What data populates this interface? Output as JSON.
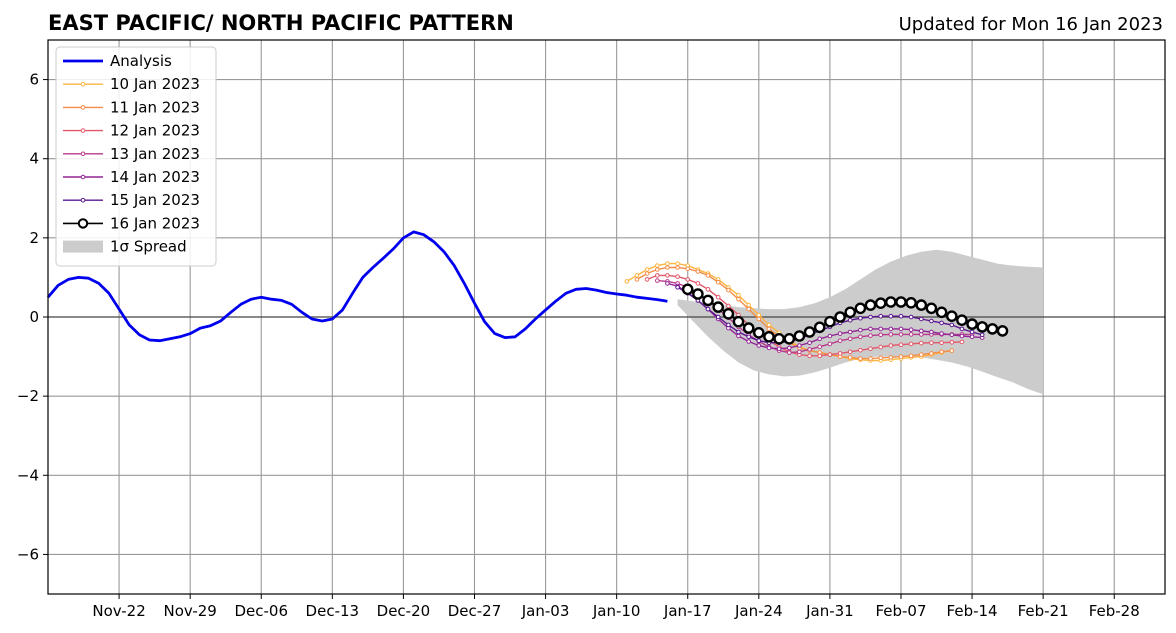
{
  "chart_data": {
    "type": "line",
    "title": "EAST PACIFIC/ NORTH PACIFIC PATTERN",
    "subtitle": "Updated for Mon 16 Jan 2023",
    "xlabel": "",
    "ylabel": "",
    "xlim": [
      "2022-11-15",
      "2023-03-05"
    ],
    "ylim": [
      -7,
      7
    ],
    "yticks": [
      6,
      4,
      2,
      0,
      -2,
      -4,
      -6
    ],
    "ytick_labels": [
      "6",
      "4",
      "2",
      "0",
      "−2",
      "−4",
      "−6"
    ],
    "xticks": [
      "2022-11-22",
      "2022-11-29",
      "2022-12-06",
      "2022-12-13",
      "2022-12-20",
      "2022-12-27",
      "2023-01-03",
      "2023-01-10",
      "2023-01-17",
      "2023-01-24",
      "2023-01-31",
      "2023-02-07",
      "2023-02-14",
      "2023-02-21",
      "2023-02-28"
    ],
    "xtick_labels": [
      "Nov-22",
      "Nov-29",
      "Dec-06",
      "Dec-13",
      "Dec-20",
      "Dec-27",
      "Jan-03",
      "Jan-10",
      "Jan-17",
      "Jan-24",
      "Jan-31",
      "Feb-07",
      "Feb-14",
      "Feb-21",
      "Feb-28"
    ],
    "grid": true,
    "legend_position": "top-left",
    "legend": [
      "Analysis",
      "10 Jan 2023",
      "11 Jan 2023",
      "12 Jan 2023",
      "13 Jan 2023",
      "14 Jan 2023",
      "15 Jan 2023",
      "16 Jan 2023",
      "1σ Spread"
    ],
    "analysis": {
      "name": "Analysis",
      "color": "#0000ee",
      "start": "2022-11-15",
      "values": [
        0.5,
        0.8,
        0.95,
        1.0,
        0.98,
        0.85,
        0.6,
        0.2,
        -0.2,
        -0.45,
        -0.58,
        -0.6,
        -0.55,
        -0.5,
        -0.42,
        -0.28,
        -0.22,
        -0.1,
        0.12,
        0.32,
        0.45,
        0.5,
        0.45,
        0.42,
        0.32,
        0.12,
        -0.05,
        -0.1,
        -0.05,
        0.18,
        0.6,
        1.0,
        1.25,
        1.48,
        1.72,
        2.0,
        2.15,
        2.08,
        1.9,
        1.65,
        1.3,
        0.85,
        0.35,
        -0.12,
        -0.42,
        -0.52,
        -0.5,
        -0.3,
        -0.05,
        0.18,
        0.4,
        0.6,
        0.7,
        0.72,
        0.68,
        0.62,
        0.58,
        0.55,
        0.5,
        0.47,
        0.44,
        0.4
      ]
    },
    "spread": {
      "name": "1σ Spread",
      "color": "#cccccc",
      "start": "2023-01-16",
      "upper": [
        0.45,
        0.4,
        0.35,
        0.3,
        0.25,
        0.22,
        0.2,
        0.2,
        0.25,
        0.35,
        0.5,
        0.7,
        0.95,
        1.2,
        1.4,
        1.55,
        1.65,
        1.7,
        1.65,
        1.55,
        1.45,
        1.35,
        1.3,
        1.27,
        1.25
      ],
      "lower": [
        0.3,
        -0.1,
        -0.5,
        -0.85,
        -1.15,
        -1.35,
        -1.45,
        -1.5,
        -1.48,
        -1.4,
        -1.28,
        -1.15,
        -1.05,
        -1.0,
        -1.0,
        -1.0,
        -1.02,
        -1.08,
        -1.15,
        -1.25,
        -1.38,
        -1.52,
        -1.65,
        -1.82,
        -1.95
      ]
    },
    "series": [
      {
        "name": "10 Jan 2023",
        "color": "#fcb540",
        "start": "2023-01-11",
        "values": [
          0.9,
          1.05,
          1.2,
          1.3,
          1.35,
          1.35,
          1.3,
          1.2,
          1.1,
          0.95,
          0.75,
          0.55,
          0.3,
          0.05,
          -0.2,
          -0.4,
          -0.6,
          -0.75,
          -0.85,
          -0.9,
          -0.95,
          -1.0,
          -1.05,
          -1.08,
          -1.1,
          -1.1,
          -1.08,
          -1.05,
          -1.02,
          -1.0,
          -0.95,
          -0.9,
          -0.85
        ]
      },
      {
        "name": "11 Jan 2023",
        "color": "#f58c47",
        "start": "2023-01-12",
        "values": [
          0.95,
          1.1,
          1.2,
          1.25,
          1.25,
          1.22,
          1.15,
          1.05,
          0.88,
          0.68,
          0.45,
          0.2,
          -0.05,
          -0.3,
          -0.5,
          -0.65,
          -0.78,
          -0.85,
          -0.9,
          -0.95,
          -1.0,
          -1.02,
          -1.05,
          -1.05,
          -1.03,
          -1.02,
          -1.0,
          -0.98,
          -0.95,
          -0.92,
          -0.88,
          -0.85
        ]
      },
      {
        "name": "12 Jan 2023",
        "color": "#e2586a",
        "start": "2023-01-13",
        "values": [
          0.95,
          1.05,
          1.05,
          1.02,
          0.95,
          0.85,
          0.7,
          0.5,
          0.28,
          0.05,
          -0.2,
          -0.42,
          -0.6,
          -0.75,
          -0.88,
          -0.95,
          -0.98,
          -0.98,
          -0.95,
          -0.92,
          -0.88,
          -0.84,
          -0.8,
          -0.76,
          -0.72,
          -0.7,
          -0.68,
          -0.66,
          -0.65,
          -0.65,
          -0.64,
          -0.63
        ]
      },
      {
        "name": "13 Jan 2023",
        "color": "#b83a8c",
        "start": "2023-01-14",
        "values": [
          0.92,
          0.9,
          0.85,
          0.75,
          0.6,
          0.42,
          0.2,
          -0.02,
          -0.25,
          -0.45,
          -0.62,
          -0.75,
          -0.85,
          -0.9,
          -0.88,
          -0.82,
          -0.75,
          -0.68,
          -0.6,
          -0.55,
          -0.5,
          -0.47,
          -0.45,
          -0.44,
          -0.44,
          -0.44,
          -0.44,
          -0.44,
          -0.44,
          -0.44,
          -0.44,
          -0.44
        ]
      },
      {
        "name": "14 Jan 2023",
        "color": "#922596",
        "start": "2023-01-15",
        "values": [
          0.85,
          0.78,
          0.62,
          0.42,
          0.2,
          -0.05,
          -0.28,
          -0.48,
          -0.62,
          -0.72,
          -0.78,
          -0.8,
          -0.78,
          -0.72,
          -0.65,
          -0.55,
          -0.48,
          -0.42,
          -0.38,
          -0.33,
          -0.3,
          -0.3,
          -0.3,
          -0.3,
          -0.32,
          -0.35,
          -0.38,
          -0.42,
          -0.45,
          -0.48,
          -0.5,
          -0.52
        ]
      },
      {
        "name": "15 Jan 2023",
        "color": "#5c1590",
        "start": "2023-01-16",
        "values": [
          0.75,
          0.6,
          0.42,
          0.2,
          0.0,
          -0.2,
          -0.38,
          -0.5,
          -0.6,
          -0.65,
          -0.65,
          -0.62,
          -0.55,
          -0.45,
          -0.35,
          -0.25,
          -0.15,
          -0.08,
          -0.03,
          0.0,
          0.02,
          0.02,
          0.02,
          0.0,
          -0.05,
          -0.1,
          -0.15,
          -0.2,
          -0.3,
          -0.38,
          -0.45
        ]
      },
      {
        "name": "16 Jan 2023",
        "color": "#000000",
        "start": "2023-01-17",
        "values": [
          0.7,
          0.58,
          0.42,
          0.25,
          0.08,
          -0.12,
          -0.28,
          -0.4,
          -0.5,
          -0.55,
          -0.55,
          -0.48,
          -0.38,
          -0.26,
          -0.12,
          0.0,
          0.12,
          0.22,
          0.3,
          0.35,
          0.38,
          0.38,
          0.36,
          0.3,
          0.22,
          0.12,
          0.02,
          -0.08,
          -0.18,
          -0.25,
          -0.3,
          -0.35
        ]
      }
    ]
  }
}
